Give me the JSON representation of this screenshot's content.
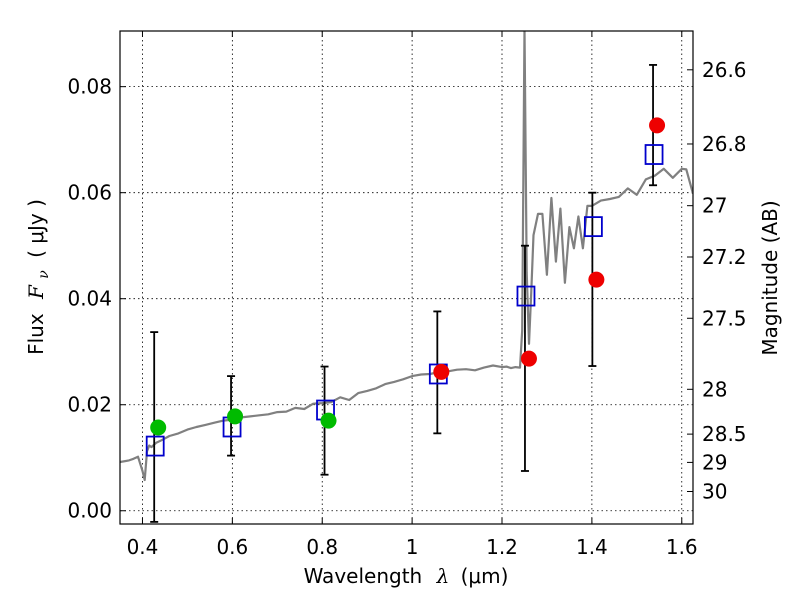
{
  "chart_data": {
    "type": "scatter",
    "xlabel_prefix": "Wavelength",
    "xlabel_symbol": "λ",
    "xlabel_unit": "(μm)",
    "ylabel_prefix": "Flux",
    "ylabel_symbol": "F",
    "ylabel_subscript": "ν",
    "ylabel_unit": "( μJy )",
    "y2label": "Magnitude (AB)",
    "xlim": [
      0.35,
      1.625
    ],
    "ylim": [
      -0.0025,
      0.0905
    ],
    "grid": true,
    "x_ticks": [
      "0.4",
      "0.6",
      "0.8",
      "1",
      "1.2",
      "1.4",
      "1.6"
    ],
    "x_tick_values": [
      0.4,
      0.6,
      0.8,
      1.0,
      1.2,
      1.4,
      1.6
    ],
    "y_ticks": [
      "0.00",
      "0.02",
      "0.04",
      "0.06",
      "0.08"
    ],
    "y_tick_values": [
      0.0,
      0.02,
      0.04,
      0.06,
      0.08
    ],
    "mag_ticks": [
      "26.6",
      "26.8",
      "27",
      "27.2",
      "27.5",
      "28",
      "28.5",
      "29",
      "30"
    ],
    "mag_tick_values": [
      26.6,
      26.8,
      27.0,
      27.2,
      27.5,
      28.0,
      28.5,
      29.0,
      30.0
    ],
    "colors": {
      "model": "#808080",
      "observed_green": "#00bb00",
      "observed_red": "#ee0000",
      "model_photometry": "#0000cc",
      "errorbar": "#000000"
    },
    "series": [
      {
        "kind": "observed",
        "x": [
          0.435,
          0.606,
          0.814,
          1.065,
          1.26,
          1.41,
          1.545
        ],
        "y": [
          0.0157,
          0.0178,
          0.017,
          0.0262,
          0.0287,
          0.0436,
          0.0727
        ],
        "yerr_low": [
          0.0178,
          0.0074,
          0.0102,
          0.0116,
          0.0212,
          0.0163,
          0.0113
        ],
        "yerr_high": [
          0.018,
          0.0076,
          0.0102,
          0.0114,
          0.0213,
          0.0164,
          0.0114
        ],
        "point_colors": [
          "green",
          "green",
          "green",
          "red",
          "red",
          "red",
          "red"
        ]
      },
      {
        "kind": "model_photometry",
        "x": [
          0.435,
          0.606,
          0.814,
          1.065,
          1.26,
          1.41,
          1.545
        ],
        "y": [
          0.0122,
          0.0158,
          0.019,
          0.0258,
          0.0405,
          0.0536,
          0.0672
        ]
      },
      {
        "kind": "model_spectrum",
        "x": [
          0.35,
          0.37,
          0.38,
          0.39,
          0.4,
          0.405,
          0.41,
          0.415,
          0.42,
          0.43,
          0.44,
          0.46,
          0.48,
          0.5,
          0.52,
          0.54,
          0.56,
          0.58,
          0.6,
          0.62,
          0.64,
          0.66,
          0.68,
          0.7,
          0.72,
          0.74,
          0.76,
          0.78,
          0.8,
          0.82,
          0.84,
          0.86,
          0.88,
          0.9,
          0.92,
          0.94,
          0.96,
          0.98,
          1.0,
          1.02,
          1.04,
          1.06,
          1.08,
          1.1,
          1.12,
          1.14,
          1.16,
          1.18,
          1.2,
          1.21,
          1.22,
          1.23,
          1.24,
          1.245,
          1.25,
          1.255,
          1.26,
          1.265,
          1.27,
          1.28,
          1.29,
          1.3,
          1.31,
          1.32,
          1.33,
          1.34,
          1.35,
          1.36,
          1.37,
          1.38,
          1.39,
          1.4,
          1.42,
          1.44,
          1.46,
          1.48,
          1.5,
          1.52,
          1.54,
          1.56,
          1.58,
          1.6,
          1.61,
          1.625
        ],
        "y": [
          0.0092,
          0.0095,
          0.0098,
          0.0102,
          0.0075,
          0.0058,
          0.0112,
          0.0123,
          0.012,
          0.0128,
          0.0132,
          0.0141,
          0.0146,
          0.0153,
          0.0158,
          0.0162,
          0.0166,
          0.017,
          0.0172,
          0.0176,
          0.0178,
          0.018,
          0.0182,
          0.0186,
          0.0187,
          0.0194,
          0.0192,
          0.0202,
          0.0203,
          0.0205,
          0.0214,
          0.0209,
          0.0222,
          0.0226,
          0.0231,
          0.0239,
          0.0243,
          0.0248,
          0.0254,
          0.0257,
          0.0258,
          0.0262,
          0.0263,
          0.0266,
          0.0267,
          0.0265,
          0.027,
          0.0274,
          0.0271,
          0.0272,
          0.0269,
          0.0271,
          0.027,
          0.034,
          0.091,
          0.045,
          0.0315,
          0.041,
          0.052,
          0.056,
          0.056,
          0.0445,
          0.059,
          0.047,
          0.057,
          0.043,
          0.0535,
          0.0495,
          0.0555,
          0.0495,
          0.0575,
          0.0575,
          0.0585,
          0.0588,
          0.0592,
          0.0608,
          0.0596,
          0.0625,
          0.0632,
          0.0645,
          0.0628,
          0.0645,
          0.0644,
          0.0598
        ]
      }
    ]
  }
}
